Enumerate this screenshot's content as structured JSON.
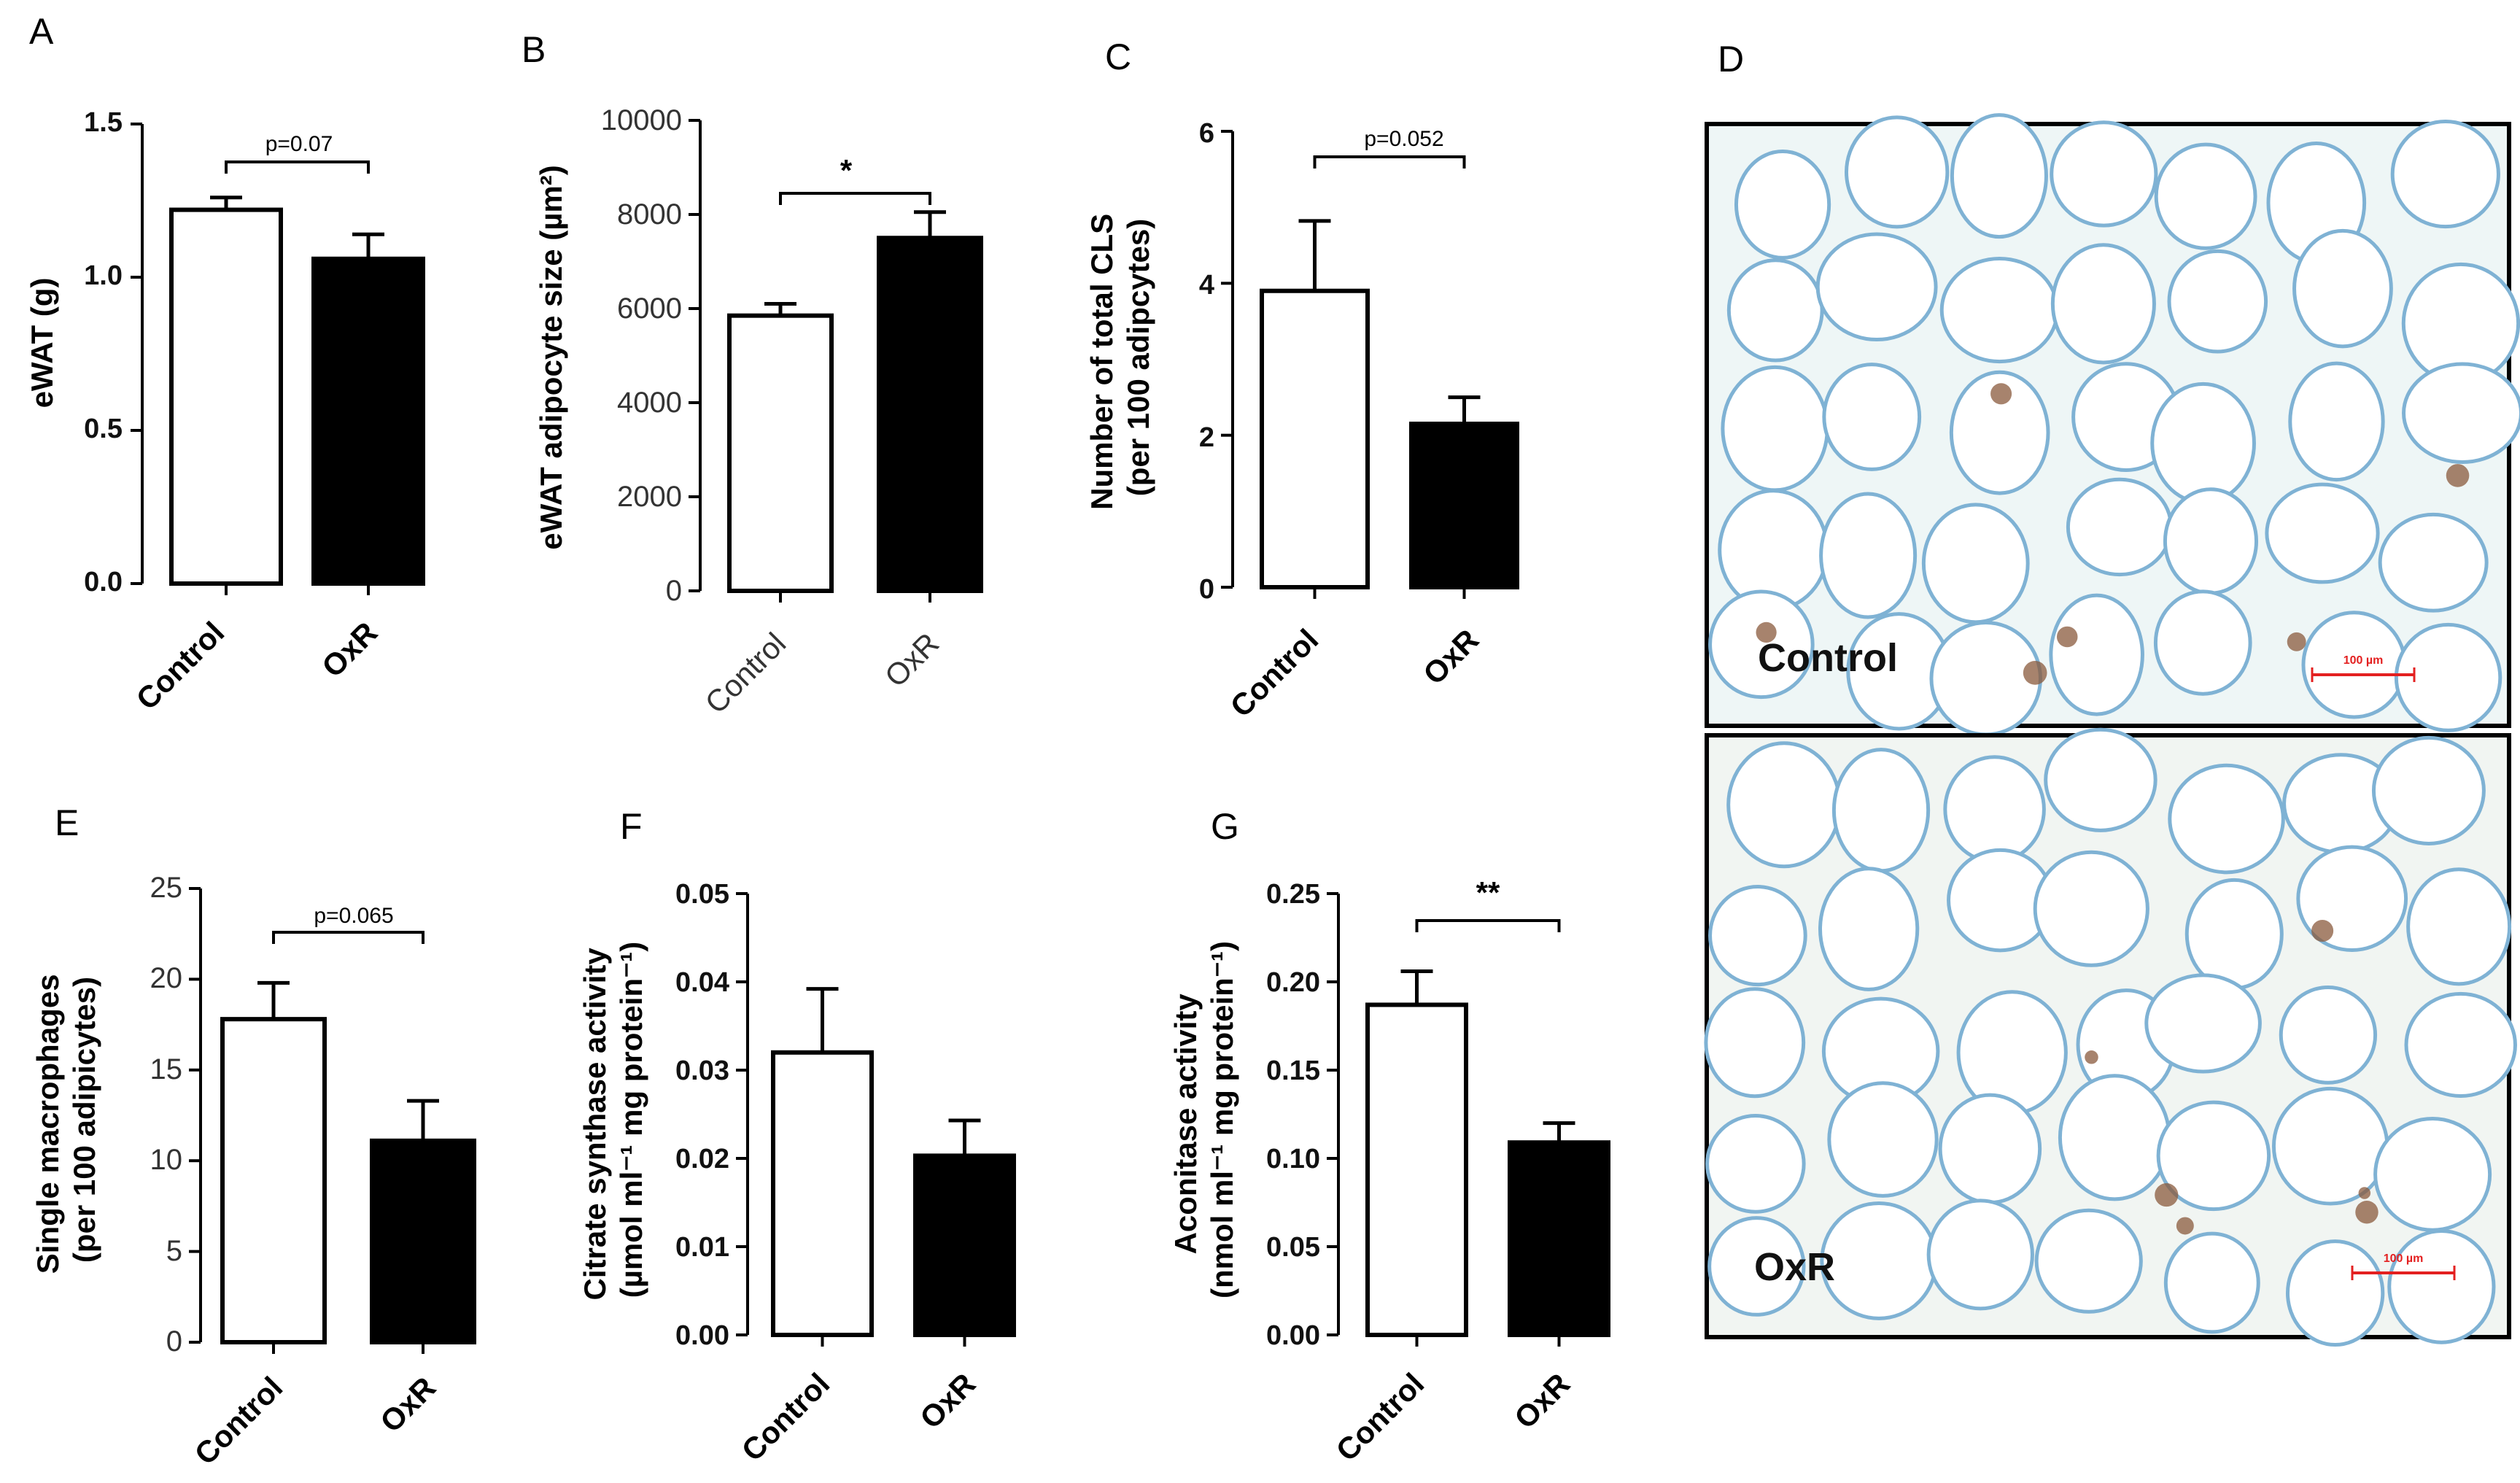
{
  "chart_data": [
    {
      "id": "A",
      "letter": "A",
      "type": "bar",
      "categories": [
        "Control",
        "OxR"
      ],
      "values": [
        1.22,
        1.06
      ],
      "errors": [
        0.04,
        0.08
      ],
      "fills": [
        "#ffffff",
        "#000000"
      ],
      "ylabel": "eWAT (g)",
      "ylim": [
        0,
        1.5
      ],
      "yticks": [
        "0.0",
        "0.5",
        "1.0",
        "1.5"
      ],
      "annotation": "p=0.07"
    },
    {
      "id": "B",
      "letter": "B",
      "type": "bar",
      "categories": [
        "Control",
        "OxR"
      ],
      "values": [
        5850,
        7500
      ],
      "errors": [
        250,
        550
      ],
      "fills": [
        "#ffffff",
        "#000000"
      ],
      "ylabel": "eWAT adipocyte size (µm²)",
      "ylim": [
        0,
        10000
      ],
      "yticks": [
        "0",
        "2000",
        "4000",
        "6000",
        "8000",
        "10000"
      ],
      "annotation": "*"
    },
    {
      "id": "C",
      "letter": "C",
      "type": "bar",
      "categories": [
        "Control",
        "OxR"
      ],
      "values": [
        3.9,
        2.15
      ],
      "errors": [
        0.92,
        0.35
      ],
      "fills": [
        "#ffffff",
        "#000000"
      ],
      "ylabel": "Number of total CLS (per 100 adipcytes)",
      "ylim": [
        0,
        6
      ],
      "yticks": [
        "0",
        "2",
        "4",
        "6"
      ],
      "annotation": "p=0.052"
    },
    {
      "id": "E",
      "letter": "E",
      "type": "bar",
      "categories": [
        "Control",
        "OxR"
      ],
      "values": [
        17.8,
        11.1
      ],
      "errors": [
        2.0,
        2.2
      ],
      "fills": [
        "#ffffff",
        "#000000"
      ],
      "ylabel": "Single macrophages (per 100 adipicytes)",
      "ylim": [
        0,
        25
      ],
      "yticks": [
        "0",
        "5",
        "10",
        "15",
        "20",
        "25"
      ],
      "annotation": "p=0.065"
    },
    {
      "id": "F",
      "letter": "F",
      "type": "bar",
      "categories": [
        "Control",
        "OxR"
      ],
      "values": [
        0.032,
        0.0203
      ],
      "errors": [
        0.0072,
        0.004
      ],
      "fills": [
        "#ffffff",
        "#000000"
      ],
      "ylabel": "Citrate synthase activity (µmol ml⁻¹ mg protein⁻¹)",
      "ylim": [
        0,
        0.05
      ],
      "yticks": [
        "0.00",
        "0.01",
        "0.02",
        "0.03",
        "0.04",
        "0.05"
      ],
      "annotation": ""
    },
    {
      "id": "G",
      "letter": "G",
      "type": "bar",
      "categories": [
        "Control",
        "OxR"
      ],
      "values": [
        0.187,
        0.109
      ],
      "errors": [
        0.019,
        0.011
      ],
      "fills": [
        "#ffffff",
        "#000000"
      ],
      "ylabel": "Aconitase activity (nmol ml⁻¹ mg protein⁻¹)",
      "ylim": [
        0,
        0.25
      ],
      "yticks": [
        "0.00",
        "0.05",
        "0.10",
        "0.15",
        "0.20",
        "0.25"
      ],
      "annotation": "**"
    }
  ],
  "panel_d": {
    "letter": "D",
    "top_label": "Control",
    "bottom_label": "OxR",
    "scale_bar_label": "100 µm",
    "colors": {
      "background": "#eef6f6",
      "membrane": "#7fb2d4",
      "stain": "#8a5a3c",
      "scale": "#e32020"
    }
  }
}
